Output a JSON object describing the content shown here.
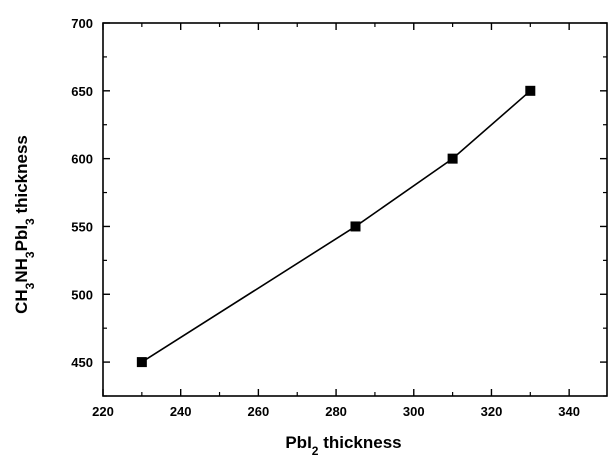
{
  "chart_data": {
    "type": "line",
    "title": "",
    "xlabel": {
      "parts": [
        {
          "text": "PbI",
          "sub": false
        },
        {
          "text": "2",
          "sub": true
        },
        {
          "text": " thickness",
          "sub": false
        }
      ]
    },
    "ylabel": {
      "parts": [
        {
          "text": "CH",
          "sub": false
        },
        {
          "text": "3",
          "sub": true
        },
        {
          "text": "NH",
          "sub": false
        },
        {
          "text": "3",
          "sub": true
        },
        {
          "text": "PbI",
          "sub": false
        },
        {
          "text": "3",
          "sub": true
        },
        {
          "text": " thickness",
          "sub": false
        }
      ]
    },
    "xlim": [
      220,
      350
    ],
    "ylim": [
      425,
      700
    ],
    "xticks": [
      220,
      240,
      260,
      280,
      300,
      320,
      340
    ],
    "yticks": [
      450,
      500,
      550,
      600,
      650,
      700
    ],
    "grid": false,
    "legend": "none",
    "marker": "square",
    "color": "#000000",
    "series": [
      {
        "x": [
          230,
          285,
          310,
          330
        ],
        "y": [
          450,
          550,
          600,
          650
        ]
      }
    ]
  }
}
